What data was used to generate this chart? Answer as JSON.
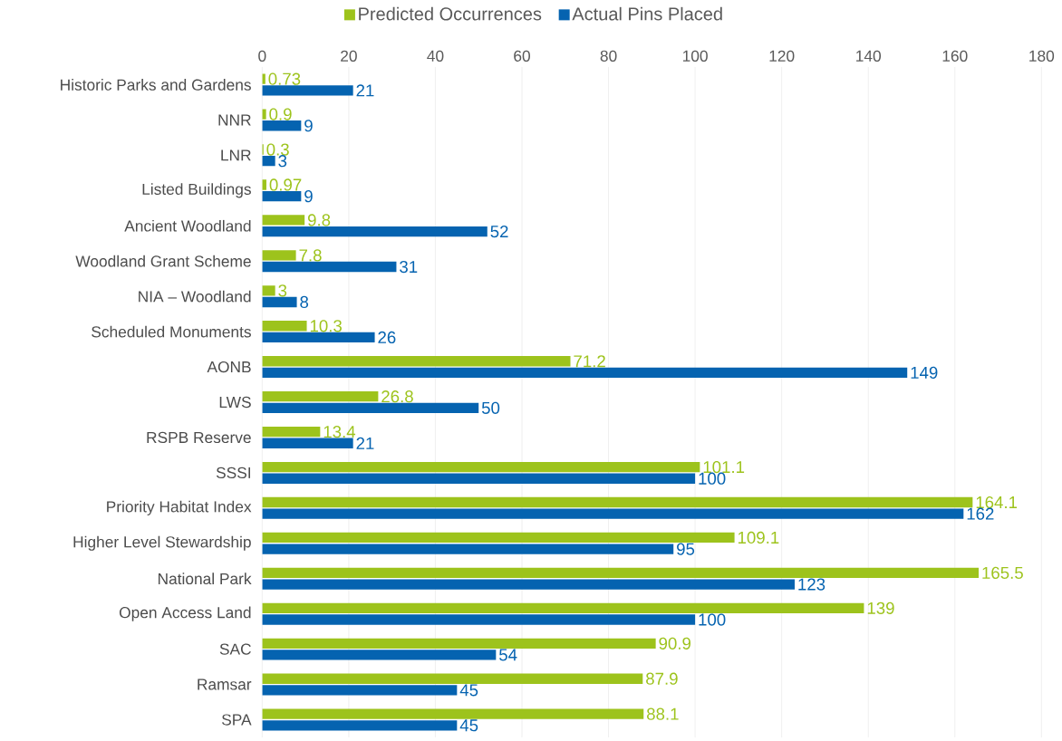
{
  "chart_data": {
    "type": "bar",
    "orientation": "horizontal",
    "categories": [
      "Historic Parks and Gardens",
      "NNR",
      "LNR",
      "Listed Buildings",
      "Ancient Woodland",
      "Woodland Grant Scheme",
      "NIA – Woodland",
      "Scheduled Monuments",
      "AONB",
      "LWS",
      "RSPB Reserve",
      "SSSI",
      "Priority Habitat Index",
      "Higher Level Stewardship",
      "National Park",
      "Open Access Land",
      "SAC",
      "Ramsar",
      "SPA"
    ],
    "series": [
      {
        "name": "Predicted Occurrences",
        "color": "#9dc31c",
        "values": [
          0.73,
          0.9,
          0.3,
          0.97,
          9.8,
          7.8,
          3,
          10.3,
          71.2,
          26.8,
          13.4,
          101.1,
          164.1,
          109.1,
          165.5,
          139,
          90.9,
          87.9,
          88.1
        ]
      },
      {
        "name": "Actual Pins Placed",
        "color": "#0563b0",
        "values": [
          21,
          9,
          3,
          9,
          52,
          31,
          8,
          26,
          149,
          50,
          21,
          100,
          162,
          95,
          123,
          100,
          54,
          45,
          45
        ]
      }
    ],
    "xlim": [
      0,
      180
    ],
    "xticks": [
      0,
      20,
      40,
      60,
      80,
      100,
      120,
      140,
      160,
      180
    ],
    "grid": "x",
    "legend": "top",
    "data_labels": true
  }
}
